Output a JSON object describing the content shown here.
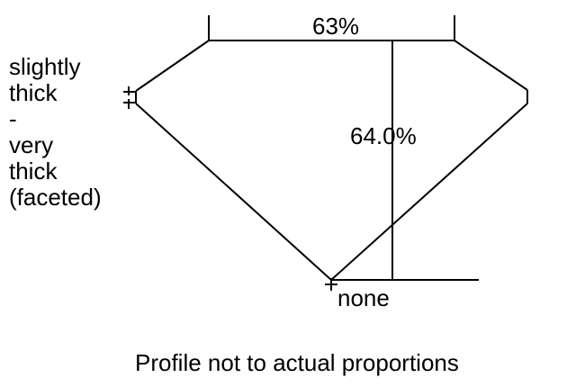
{
  "diagram": {
    "table_percent": "63%",
    "depth_percent": "64.0%",
    "girdle_label": [
      "slightly",
      "thick",
      "-",
      "very",
      "thick",
      "(faceted)"
    ],
    "culet_label": "none",
    "caption": "Profile not to actual proportions",
    "line_color": "#000000",
    "background_color": "#ffffff"
  }
}
